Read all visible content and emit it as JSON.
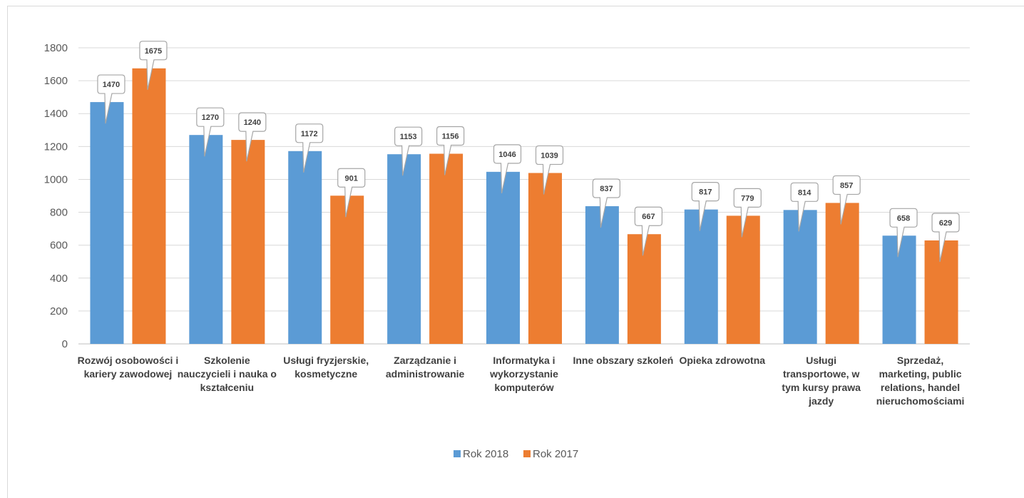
{
  "chart_data": {
    "type": "bar",
    "categories": [
      [
        "Rozwój osobowości i",
        "kariery zawodowej"
      ],
      [
        "Szkolenie",
        "nauczycieli i nauka o",
        "kształceniu"
      ],
      [
        "Usługi fryzjerskie,",
        "kosmetyczne"
      ],
      [
        "Zarządzanie i",
        "administrowanie"
      ],
      [
        "Informatyka i",
        "wykorzystanie",
        "komputerów"
      ],
      [
        "Inne obszary szkoleń"
      ],
      [
        "Opieka zdrowotna"
      ],
      [
        "Usługi",
        "transportowe, w",
        "tym kursy prawa",
        "jazdy"
      ],
      [
        "Sprzedaż,",
        "marketing, public",
        "relations, handel",
        "nieruchomościami"
      ]
    ],
    "series": [
      {
        "name": "Rok 2018",
        "color": "#5B9BD5",
        "values": [
          1470,
          1270,
          1172,
          1153,
          1046,
          837,
          817,
          814,
          658
        ]
      },
      {
        "name": "Rok 2017",
        "color": "#ED7D31",
        "values": [
          1675,
          1240,
          901,
          1156,
          1039,
          667,
          779,
          857,
          629
        ]
      }
    ],
    "ylim": [
      0,
      1800
    ],
    "yticks": [
      0,
      200,
      400,
      600,
      800,
      1000,
      1200,
      1400,
      1600,
      1800
    ],
    "grid": true,
    "legend_position": "bottom",
    "title": "",
    "xlabel": "",
    "ylabel": ""
  }
}
